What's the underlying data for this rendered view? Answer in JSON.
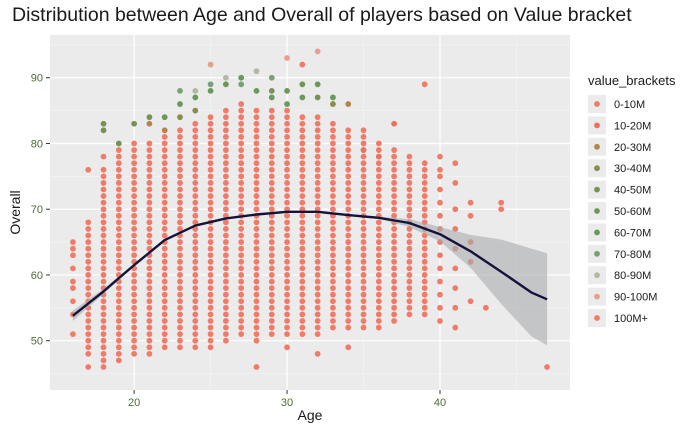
{
  "chart_data": {
    "type": "scatter",
    "title": "Distribution between Age and Overall of players based on Value bracket",
    "xlabel": "Age",
    "ylabel": "Overall",
    "xlim": [
      14.5,
      48.5
    ],
    "ylim": [
      42.5,
      96.5
    ],
    "x_ticks": [
      20,
      30,
      40
    ],
    "y_ticks": [
      50,
      60,
      70,
      80,
      90
    ],
    "grid": true,
    "legend_title": "value_brackets",
    "legend_position": "right",
    "series": [
      {
        "name": "0-10M",
        "color": "#f07b68",
        "points": [
          [
            16,
            51
          ],
          [
            16,
            54
          ],
          [
            16,
            56
          ],
          [
            16,
            58
          ],
          [
            16,
            59
          ],
          [
            16,
            61
          ],
          [
            16,
            63
          ],
          [
            16,
            64
          ],
          [
            16,
            65
          ],
          [
            17,
            46
          ],
          [
            17,
            76
          ],
          [
            18,
            46
          ],
          [
            18,
            78
          ],
          [
            19,
            47
          ],
          [
            19,
            79
          ],
          [
            25,
            49
          ],
          [
            28,
            46
          ],
          [
            30,
            49
          ],
          [
            32,
            48
          ],
          [
            34,
            49
          ],
          [
            40,
            53
          ],
          [
            40,
            55
          ],
          [
            40,
            57
          ],
          [
            40,
            59
          ],
          [
            40,
            61
          ],
          [
            40,
            63
          ],
          [
            40,
            65
          ],
          [
            40,
            67
          ],
          [
            40,
            69
          ],
          [
            40,
            71
          ],
          [
            40,
            73
          ],
          [
            40,
            75
          ],
          [
            40,
            76
          ],
          [
            40,
            78
          ],
          [
            41,
            52
          ],
          [
            41,
            55
          ],
          [
            41,
            58
          ],
          [
            41,
            61
          ],
          [
            41,
            64
          ],
          [
            41,
            67
          ],
          [
            41,
            70
          ],
          [
            41,
            74
          ],
          [
            41,
            77
          ],
          [
            42,
            56
          ],
          [
            42,
            62
          ],
          [
            42,
            65
          ],
          [
            42,
            69
          ],
          [
            42,
            71
          ],
          [
            43,
            55
          ],
          [
            44,
            70
          ],
          [
            44,
            71
          ],
          [
            47,
            46
          ]
        ]
      },
      {
        "name": "10-20M",
        "color": "#e8735f",
        "points": [
          [
            35,
            79
          ],
          [
            36,
            78
          ],
          [
            37,
            83
          ]
        ]
      },
      {
        "name": "20-30M",
        "color": "#b3854a",
        "points": [
          [
            21,
            83
          ],
          [
            22,
            82
          ],
          [
            34,
            86
          ]
        ]
      },
      {
        "name": "30-40M",
        "color": "#8b8b4a",
        "points": [
          [
            23,
            84
          ],
          [
            24,
            85
          ],
          [
            33,
            86
          ]
        ]
      },
      {
        "name": "40-50M",
        "color": "#7a9155",
        "points": [
          [
            18,
            82
          ],
          [
            20,
            83
          ],
          [
            29,
            88
          ],
          [
            32,
            87
          ]
        ]
      },
      {
        "name": "50-60M",
        "color": "#6f9657",
        "points": [
          [
            18,
            83
          ],
          [
            19,
            80
          ],
          [
            21,
            84
          ],
          [
            22,
            84
          ],
          [
            26,
            89
          ],
          [
            30,
            88
          ],
          [
            31,
            89
          ]
        ]
      },
      {
        "name": "60-70M",
        "color": "#679a5c",
        "points": [
          [
            23,
            86
          ],
          [
            24,
            87
          ],
          [
            25,
            88
          ],
          [
            27,
            90
          ],
          [
            28,
            88
          ],
          [
            29,
            87
          ],
          [
            30,
            86
          ],
          [
            31,
            87
          ],
          [
            32,
            89
          ],
          [
            33,
            87
          ]
        ]
      },
      {
        "name": "70-80M",
        "color": "#7aa175",
        "points": [
          [
            23,
            88
          ],
          [
            25,
            89
          ],
          [
            27,
            89
          ],
          [
            29,
            90
          ]
        ]
      },
      {
        "name": "80-90M",
        "color": "#b5b8a0",
        "points": [
          [
            24,
            88
          ],
          [
            26,
            90
          ],
          [
            28,
            91
          ]
        ]
      },
      {
        "name": "90-100M",
        "color": "#e8a08e",
        "points": [
          [
            25,
            92
          ],
          [
            30,
            93
          ],
          [
            32,
            94
          ]
        ]
      },
      {
        "name": "100M+",
        "color": "#f07b68",
        "points": [
          [
            31,
            92
          ],
          [
            39,
            89
          ]
        ]
      }
    ],
    "distribution_bands": {
      "color": "#f07b68",
      "columns": [
        {
          "age": 17,
          "min": 48,
          "max": 68
        },
        {
          "age": 18,
          "min": 47,
          "max": 76
        },
        {
          "age": 19,
          "min": 48,
          "max": 78
        },
        {
          "age": 20,
          "min": 48,
          "max": 80
        },
        {
          "age": 21,
          "min": 48,
          "max": 80
        },
        {
          "age": 22,
          "min": 49,
          "max": 81
        },
        {
          "age": 23,
          "min": 49,
          "max": 82
        },
        {
          "age": 24,
          "min": 49,
          "max": 83
        },
        {
          "age": 25,
          "min": 50,
          "max": 84
        },
        {
          "age": 26,
          "min": 50,
          "max": 85
        },
        {
          "age": 27,
          "min": 51,
          "max": 86
        },
        {
          "age": 28,
          "min": 50,
          "max": 85
        },
        {
          "age": 29,
          "min": 51,
          "max": 85
        },
        {
          "age": 30,
          "min": 51,
          "max": 85
        },
        {
          "age": 31,
          "min": 51,
          "max": 84
        },
        {
          "age": 32,
          "min": 51,
          "max": 84
        },
        {
          "age": 33,
          "min": 52,
          "max": 83
        },
        {
          "age": 34,
          "min": 52,
          "max": 82
        },
        {
          "age": 35,
          "min": 52,
          "max": 82
        },
        {
          "age": 36,
          "min": 52,
          "max": 80
        },
        {
          "age": 37,
          "min": 53,
          "max": 79
        },
        {
          "age": 38,
          "min": 54,
          "max": 78
        },
        {
          "age": 39,
          "min": 54,
          "max": 77
        }
      ]
    },
    "smooth": {
      "color": "#14143a",
      "ribbon_color": "#a9abaf",
      "x": [
        16,
        18,
        20,
        22,
        24,
        26,
        28,
        30,
        32,
        34,
        36,
        38,
        40,
        42,
        44,
        46,
        47
      ],
      "y": [
        53.8,
        57.5,
        61.5,
        65.3,
        67.5,
        68.6,
        69.2,
        69.6,
        69.6,
        69.1,
        68.7,
        67.9,
        66.2,
        63.6,
        60.5,
        57.3,
        56.3
      ],
      "ribbon_upper": [
        54.6,
        57.9,
        61.7,
        65.4,
        67.6,
        68.7,
        69.3,
        69.7,
        69.7,
        69.2,
        68.9,
        68.5,
        67.3,
        66.1,
        65.4,
        64.0,
        63.3
      ],
      "ribbon_lower": [
        53.0,
        57.1,
        61.3,
        65.2,
        67.4,
        68.5,
        69.1,
        69.5,
        69.5,
        69.0,
        68.5,
        67.3,
        65.1,
        61.1,
        55.6,
        50.6,
        49.3
      ]
    }
  }
}
